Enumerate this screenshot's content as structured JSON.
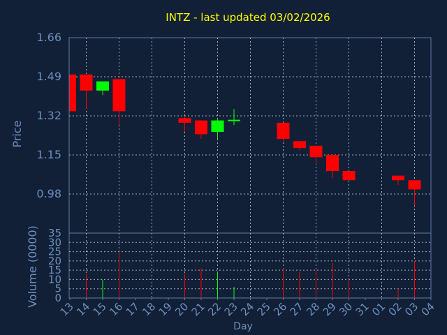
{
  "chart_data": [
    {
      "type": "candlestick",
      "title": "INTZ - last updated 03/02/2026",
      "ylabel": "Price",
      "ylim": [
        0.81,
        1.66
      ],
      "yticks": [
        "0.98",
        "1.15",
        "1.32",
        "1.49",
        "1.66"
      ],
      "grid": true,
      "categories": [
        "13",
        "14",
        "15",
        "16",
        "17",
        "18",
        "19",
        "20",
        "21",
        "22",
        "23",
        "24",
        "25",
        "26",
        "27",
        "28",
        "29",
        "30",
        "31",
        "01",
        "02",
        "03",
        "04"
      ],
      "candles": [
        {
          "x": "13",
          "open": 1.5,
          "high": 1.5,
          "low": 1.34,
          "close": 1.34
        },
        {
          "x": "14",
          "open": 1.5,
          "high": 1.5,
          "low": 1.35,
          "close": 1.43
        },
        {
          "x": "15",
          "open": 1.43,
          "high": 1.47,
          "low": 1.41,
          "close": 1.47
        },
        {
          "x": "16",
          "open": 1.48,
          "high": 1.48,
          "low": 1.28,
          "close": 1.34
        },
        {
          "x": "20",
          "open": 1.31,
          "high": 1.32,
          "low": 1.25,
          "close": 1.29
        },
        {
          "x": "21",
          "open": 1.3,
          "high": 1.3,
          "low": 1.22,
          "close": 1.24
        },
        {
          "x": "22",
          "open": 1.25,
          "high": 1.31,
          "low": 1.22,
          "close": 1.3
        },
        {
          "x": "23",
          "open": 1.3,
          "high": 1.35,
          "low": 1.28,
          "close": 1.3
        },
        {
          "x": "26",
          "open": 1.29,
          "high": 1.29,
          "low": 1.21,
          "close": 1.22
        },
        {
          "x": "27",
          "open": 1.21,
          "high": 1.21,
          "low": 1.17,
          "close": 1.18
        },
        {
          "x": "28",
          "open": 1.19,
          "high": 1.19,
          "low": 1.11,
          "close": 1.14
        },
        {
          "x": "29",
          "open": 1.15,
          "high": 1.15,
          "low": 1.05,
          "close": 1.08
        },
        {
          "x": "30",
          "open": 1.08,
          "high": 1.08,
          "low": 1.04,
          "close": 1.04
        },
        {
          "x": "02",
          "open": 1.06,
          "high": 1.06,
          "low": 1.02,
          "close": 1.04
        },
        {
          "x": "03",
          "open": 1.04,
          "high": 1.04,
          "low": 0.93,
          "close": 1.0
        }
      ],
      "colors": {
        "up": "#00ff00",
        "down": "#ff0000"
      }
    },
    {
      "type": "bar",
      "ylabel": "Volume (0000)",
      "xlabel": "Day",
      "ylim": [
        0,
        35
      ],
      "yticks": [
        "0",
        "5",
        "10",
        "15",
        "20",
        "25",
        "30",
        "35"
      ],
      "categories": [
        "13",
        "14",
        "15",
        "16",
        "17",
        "18",
        "19",
        "20",
        "21",
        "22",
        "23",
        "24",
        "25",
        "26",
        "27",
        "28",
        "29",
        "30",
        "31",
        "01",
        "02",
        "03",
        "04"
      ],
      "series": [
        {
          "values": [
            0,
            13,
            10,
            25,
            0,
            0,
            0,
            13,
            16,
            14,
            6,
            0,
            0,
            16,
            14,
            15,
            19,
            10,
            0,
            0,
            5,
            20,
            0
          ]
        }
      ],
      "bar_colors": [
        "",
        "#ff0000",
        "#00ff00",
        "#ff0000",
        "",
        "",
        "",
        "#ff0000",
        "#ff0000",
        "#00ff00",
        "#00ff00",
        "",
        "",
        "#ff0000",
        "#ff0000",
        "#ff0000",
        "#ff0000",
        "#ff0000",
        "",
        "",
        "#ff0000",
        "#ff0000",
        ""
      ]
    }
  ]
}
